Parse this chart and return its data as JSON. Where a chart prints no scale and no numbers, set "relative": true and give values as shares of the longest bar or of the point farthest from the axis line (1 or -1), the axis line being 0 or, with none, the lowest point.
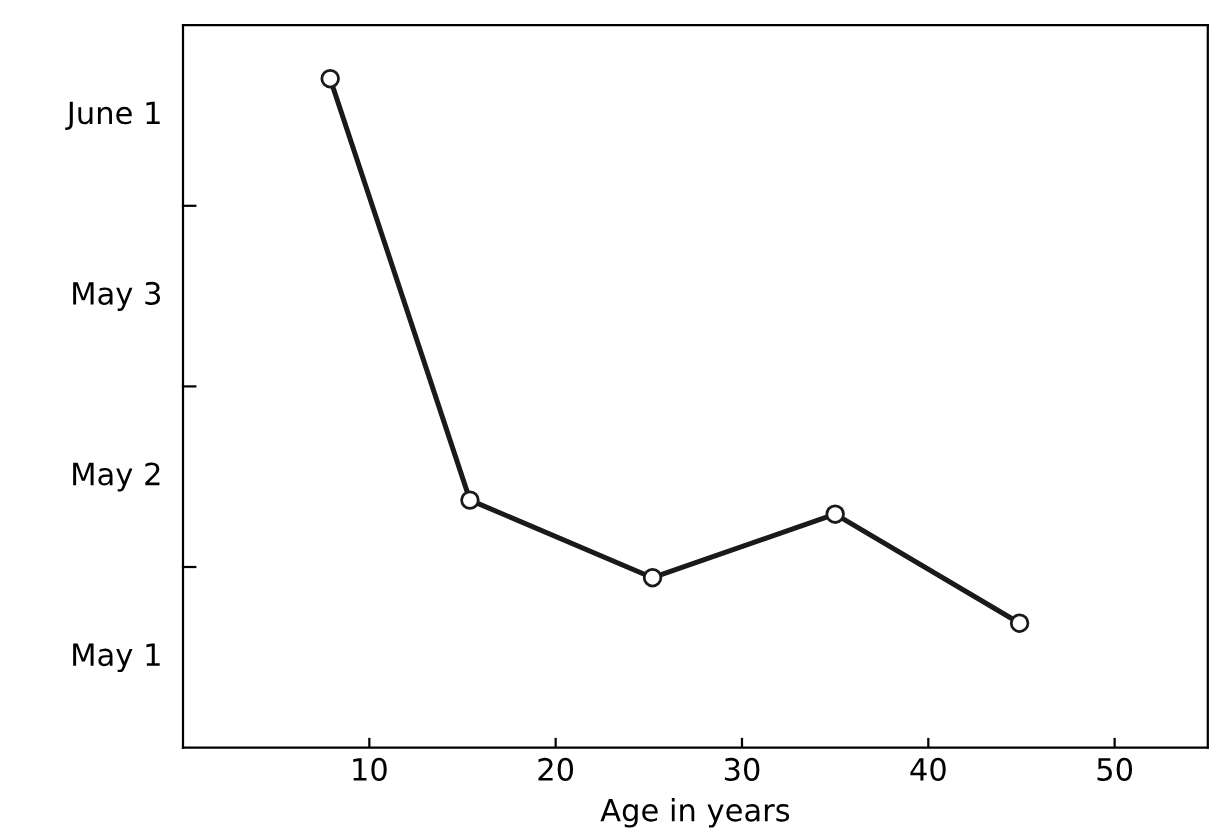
{
  "chart_data": {
    "type": "line",
    "xlabel": "Age in years",
    "relative": true,
    "x": [
      7.9,
      15.4,
      25.2,
      35.0,
      44.9
    ],
    "series": [
      {
        "color": "#1a1a1a",
        "values": [
          1,
          0.37,
          0.254,
          0.349,
          0.186
        ]
      }
    ],
    "xlim": [
      0,
      55
    ],
    "xticks": [
      10,
      20,
      30,
      40,
      50
    ],
    "annotations": [
      "June 1",
      "May 3",
      "May 2",
      "May 1"
    ],
    "marker": "circle",
    "line_style": "solid",
    "grid": false,
    "legend": false
  }
}
